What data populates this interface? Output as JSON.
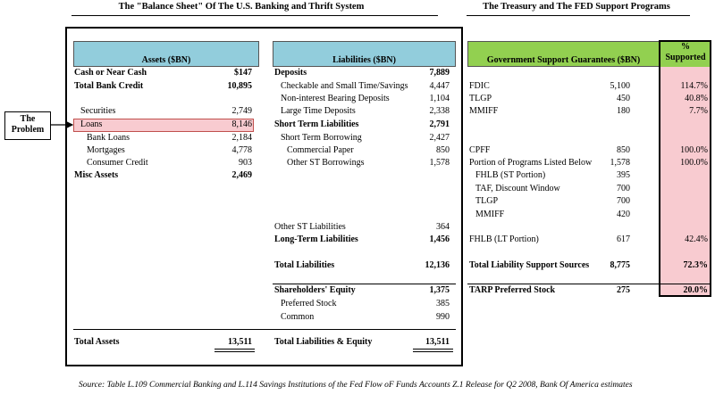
{
  "titles": {
    "balance_sheet": "The \"Balance Sheet\" Of The U.S. Banking and Thrift System",
    "support": "The Treasury and The FED Support Programs"
  },
  "callout": "The Problem",
  "assets": {
    "header": "Assets ($BN)",
    "rows": [
      [
        "Cash or Near Cash",
        "$147"
      ],
      [
        "Total Bank Credit",
        "10,895"
      ],
      [
        "Securities",
        "2,749"
      ],
      [
        "Loans",
        "8,146"
      ],
      [
        "Bank Loans",
        "2,184"
      ],
      [
        "Mortgages",
        "4,778"
      ],
      [
        "Consumer Credit",
        "903"
      ],
      [
        "Misc Assets",
        "2,469"
      ]
    ],
    "total": [
      "Total Assets",
      "13,511"
    ]
  },
  "liabilities": {
    "header": "Liabilities ($BN)",
    "rows": [
      [
        "Deposits",
        "7,889"
      ],
      [
        "Checkable and Small Time/Savings",
        "4,447"
      ],
      [
        "Non-interest Bearing Deposits",
        "1,104"
      ],
      [
        "Large Time Deposits",
        "2,338"
      ],
      [
        "Short Term Liabilities",
        "2,791"
      ],
      [
        "Short Term Borrowing",
        "2,427"
      ],
      [
        "Commercial Paper",
        "850"
      ],
      [
        "Other ST Borrowings",
        "1,578"
      ],
      [
        "Other ST Liabilities",
        "364"
      ],
      [
        "Long-Term Liabilities",
        "1,456"
      ],
      [
        "Total Liabilities",
        "12,136"
      ],
      [
        "Shareholders' Equity",
        "1,375"
      ],
      [
        "Preferred Stock",
        "385"
      ],
      [
        "Common",
        "990"
      ]
    ],
    "total": [
      "Total Liabilities & Equity",
      "13,511"
    ]
  },
  "support": {
    "header": "Government Support Guarantees ($BN)",
    "pct_header": "% Supported",
    "rows": [
      [
        "FDIC",
        "5,100",
        "114.7%"
      ],
      [
        "TLGP",
        "450",
        "40.8%"
      ],
      [
        "MMIFF",
        "180",
        "7.7%"
      ],
      [
        "CPFF",
        "850",
        "100.0%"
      ],
      [
        "Portion of Programs Listed Below",
        "1,578",
        "100.0%"
      ],
      [
        "FHLB (ST Portion)",
        "395"
      ],
      [
        "TAF, Discount Window",
        "700"
      ],
      [
        "TLGP",
        "700"
      ],
      [
        "MMIFF",
        "420"
      ],
      [
        "FHLB (LT Portion)",
        "617",
        "42.4%"
      ],
      [
        "Total Liability Support Sources",
        "8,775",
        "72.3%"
      ],
      [
        "TARP Preferred Stock",
        "275",
        "20.0%"
      ]
    ]
  },
  "source": "Source: Table L.109 Commercial Banking and L.114 Savings Institutions of the Fed Flow oF Funds Accounts Z.1 Release for Q2 2008, Bank Of America estimates"
}
